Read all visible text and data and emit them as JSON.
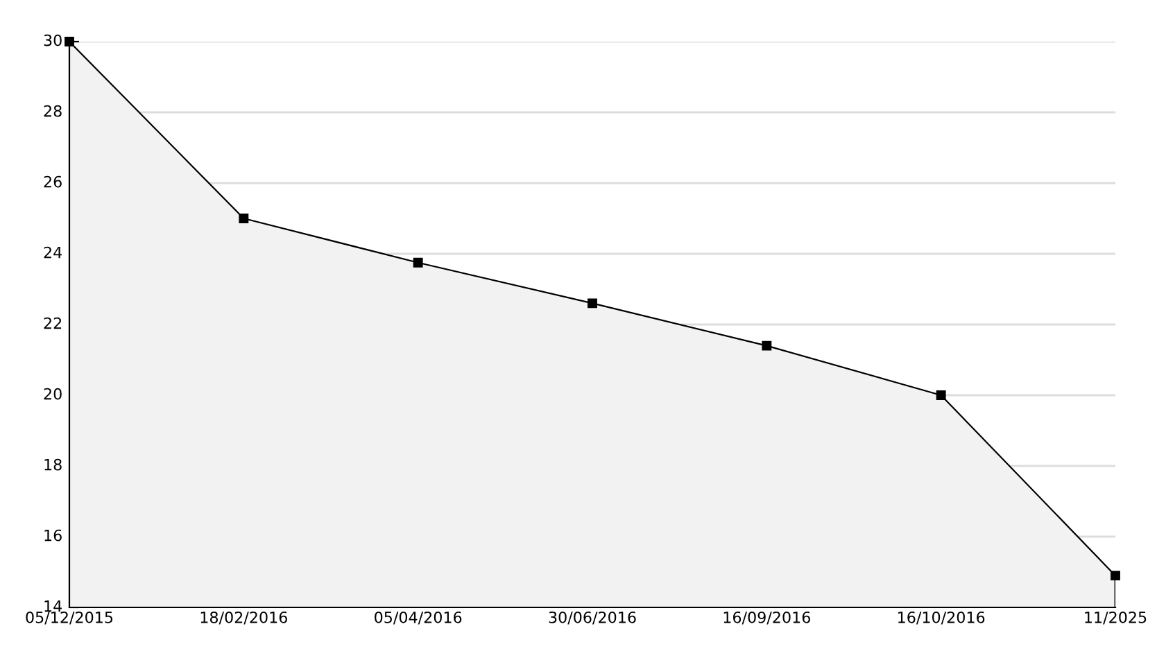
{
  "chart_data": {
    "type": "area",
    "categories": [
      "05/12/2015",
      "18/02/2016",
      "05/04/2016",
      "30/06/2016",
      "16/09/2016",
      "16/10/2016",
      "11/2025"
    ],
    "series": [
      {
        "color": "#000000",
        "values": [
          30,
          25,
          23.75,
          22.6,
          21.4,
          20,
          14.9
        ]
      }
    ],
    "ylim": [
      14,
      30
    ],
    "yticks": [
      14,
      16,
      18,
      20,
      22,
      24,
      26,
      28,
      30
    ],
    "grid": "y",
    "marker": "square",
    "line_style": "solid"
  }
}
